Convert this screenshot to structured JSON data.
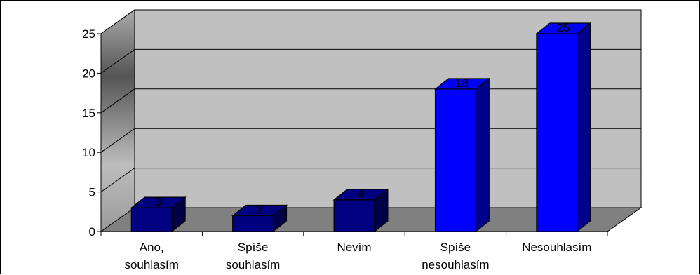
{
  "chart_data": {
    "type": "bar",
    "title": "",
    "xlabel": "",
    "ylabel": "",
    "categories": [
      [
        "Ano,",
        "souhlasím"
      ],
      [
        "Spíše",
        "souhlasím"
      ],
      [
        "Nevím"
      ],
      [
        "Spíše",
        "nesouhlasím"
      ],
      [
        "Nesouhlasím"
      ]
    ],
    "values": [
      3,
      2,
      4,
      18,
      25
    ],
    "data_labels": [
      "3",
      "2",
      "4",
      "18",
      "25"
    ],
    "ylim": [
      0,
      25
    ],
    "yticks": [
      "0",
      "5",
      "10",
      "15",
      "20",
      "25"
    ],
    "grid": true,
    "legend": "none",
    "style": "3d-column",
    "colors": {
      "highlighted_bars": "#0000ff",
      "other_bars": "#000080",
      "back_wall": "#c0c0c0",
      "floor": "#808080"
    },
    "highlighted": [
      false,
      false,
      false,
      true,
      true
    ]
  }
}
